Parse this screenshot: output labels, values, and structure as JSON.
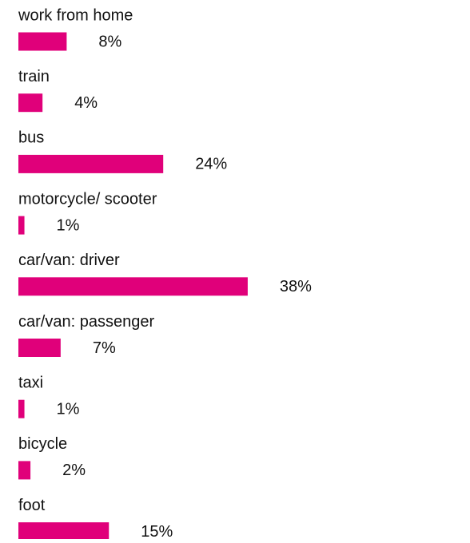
{
  "chart_data": {
    "type": "bar",
    "orientation": "horizontal",
    "color": "#e0007a",
    "categories": [
      "work from home",
      "train",
      "bus",
      "motorcycle/ scooter",
      "car/van: driver",
      "car/van: passenger",
      "taxi",
      "bicycle",
      "foot"
    ],
    "values": [
      8,
      4,
      24,
      1,
      38,
      7,
      1,
      2,
      15
    ],
    "value_labels": [
      "8%",
      "4%",
      "24%",
      "1%",
      "38%",
      "7%",
      "1%",
      "2%",
      "15%"
    ]
  }
}
